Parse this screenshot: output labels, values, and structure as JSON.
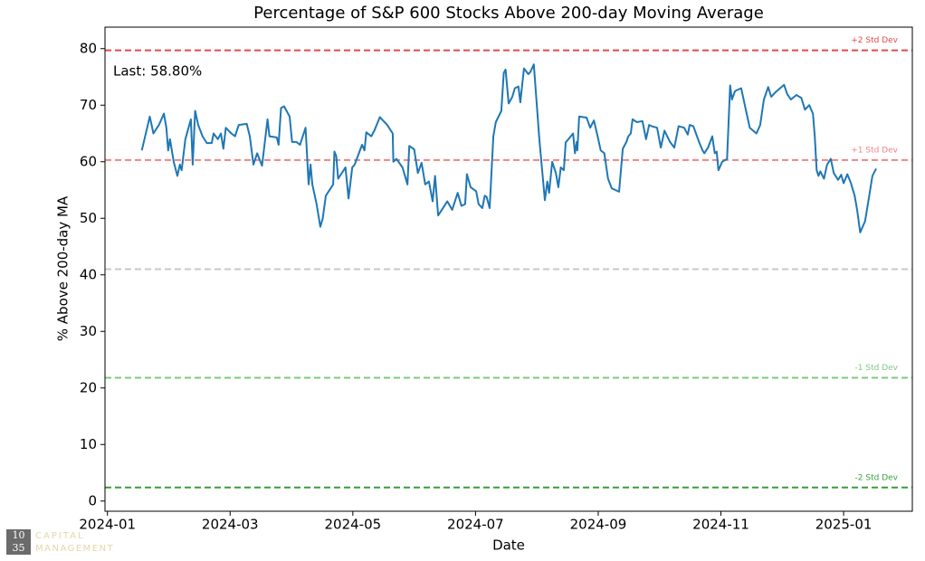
{
  "chart_data": {
    "type": "line",
    "title": "Percentage of S&P 600 Stocks Above 200-day Moving Average",
    "xlabel": "Date",
    "ylabel": "% Above 200-day MA",
    "annotation": "Last: 58.80%",
    "watermark": {
      "top": "10",
      "bottom": "35",
      "line1": "CAPITAL",
      "line2": "MANAGEMENT"
    },
    "xlim": [
      -0.04,
      13.12
    ],
    "xticks": [
      {
        "value": 0,
        "label": "2024-01"
      },
      {
        "value": 2,
        "label": "2024-03"
      },
      {
        "value": 4,
        "label": "2024-05"
      },
      {
        "value": 6,
        "label": "2024-07"
      },
      {
        "value": 8,
        "label": "2024-09"
      },
      {
        "value": 10,
        "label": "2024-11"
      },
      {
        "value": 12,
        "label": "2025-01"
      }
    ],
    "ylim": [
      -1.8,
      83.8
    ],
    "yticks": [
      0,
      10,
      20,
      30,
      40,
      50,
      60,
      70,
      80
    ],
    "reference_lines": [
      {
        "value": 79.7,
        "label": "+2 Std Dev",
        "color": "#e04a4a"
      },
      {
        "value": 60.3,
        "label": "+1 Std Dev",
        "color": "#ee8585"
      },
      {
        "value": 41.0,
        "color": "#c8c8c8"
      },
      {
        "value": 21.8,
        "label": "-1 Std Dev",
        "color": "#7cc97c"
      },
      {
        "value": 2.4,
        "label": "-2 Std Dev",
        "color": "#3a9e3a"
      }
    ],
    "series": [
      {
        "color": "#1f77b4",
        "x": [
          0.56,
          0.69,
          0.75,
          0.84,
          0.92,
          0.96,
          0.99,
          1.02,
          1.08,
          1.14,
          1.18,
          1.21,
          1.27,
          1.36,
          1.39,
          1.43,
          1.48,
          1.55,
          1.62,
          1.7,
          1.73,
          1.8,
          1.85,
          1.89,
          1.93,
          2.02,
          2.08,
          2.14,
          2.27,
          2.32,
          2.38,
          2.44,
          2.52,
          2.61,
          2.64,
          2.76,
          2.79,
          2.83,
          2.88,
          2.97,
          3.01,
          3.08,
          3.14,
          3.23,
          3.28,
          3.31,
          3.34,
          3.41,
          3.47,
          3.51,
          3.56,
          3.68,
          3.7,
          3.73,
          3.76,
          3.82,
          3.88,
          3.93,
          3.99,
          4.03,
          4.15,
          4.19,
          4.22,
          4.3,
          4.35,
          4.44,
          4.56,
          4.65,
          4.66,
          4.71,
          4.81,
          4.89,
          4.92,
          5.0,
          5.06,
          5.12,
          5.18,
          5.24,
          5.3,
          5.34,
          5.39,
          5.48,
          5.54,
          5.62,
          5.71,
          5.77,
          5.83,
          5.86,
          5.92,
          6.01,
          6.05,
          6.11,
          6.15,
          6.18,
          6.23,
          6.29,
          6.33,
          6.42,
          6.46,
          6.49,
          6.54,
          6.6,
          6.64,
          6.7,
          6.73,
          6.79,
          6.86,
          6.89,
          6.95,
          7.04,
          7.13,
          7.17,
          7.2,
          7.25,
          7.31,
          7.35,
          7.39,
          7.44,
          7.47,
          7.59,
          7.62,
          7.65,
          7.66,
          7.69,
          7.81,
          7.87,
          7.93,
          7.99,
          8.04,
          8.1,
          8.16,
          8.22,
          8.28,
          8.34,
          8.4,
          8.46,
          8.49,
          8.53,
          8.56,
          8.63,
          8.72,
          8.78,
          8.83,
          8.87,
          8.96,
          9.02,
          9.08,
          9.17,
          9.24,
          9.31,
          9.4,
          9.46,
          9.49,
          9.55,
          9.64,
          9.7,
          9.73,
          9.79,
          9.86,
          9.9,
          9.93,
          9.96,
          10.02,
          10.1,
          10.15,
          10.18,
          10.23,
          10.33,
          10.41,
          10.47,
          10.58,
          10.64,
          10.7,
          10.77,
          10.82,
          10.89,
          11.03,
          11.08,
          11.14,
          11.23,
          11.31,
          11.37,
          11.44,
          11.5,
          11.53,
          11.56,
          11.59,
          11.62,
          11.68,
          11.73,
          11.79,
          11.84,
          11.91,
          11.96,
          12.0,
          12.06,
          12.12,
          12.18,
          12.22,
          12.27,
          12.35,
          12.41,
          12.47,
          12.53
        ],
        "values": [
          62,
          68,
          65,
          66.5,
          68.5,
          66,
          62,
          64,
          60,
          57.5,
          59.5,
          58.5,
          64,
          67.5,
          59.5,
          69,
          66.5,
          64.5,
          63.3,
          63.3,
          65,
          64,
          65,
          62.3,
          66,
          65,
          64.5,
          66.5,
          66.7,
          64.5,
          59.5,
          61.5,
          59.3,
          67.5,
          64.5,
          64.3,
          63,
          69.5,
          69.8,
          68,
          63.5,
          63.5,
          63,
          66,
          56,
          59.5,
          56,
          52.5,
          48.5,
          50,
          54,
          56,
          61.8,
          61,
          57,
          58,
          59,
          53.5,
          59,
          59.5,
          63,
          62,
          65.2,
          64.5,
          65.5,
          67.9,
          66.5,
          65,
          60,
          60.5,
          59,
          56,
          62.8,
          62.2,
          58,
          59.8,
          56,
          56.5,
          53,
          57.5,
          50.5,
          52,
          53,
          51.5,
          54.5,
          52.2,
          52.5,
          57.8,
          55.5,
          54.8,
          52.5,
          51.8,
          54,
          53.8,
          51.8,
          64.5,
          67,
          69,
          75.7,
          76.3,
          70.3,
          71.5,
          73,
          73.3,
          70.5,
          76.5,
          75.5,
          75.8,
          77.2,
          64,
          53.2,
          56.5,
          54.5,
          60,
          58,
          55.5,
          59,
          58.5,
          63.4,
          65,
          61.5,
          63.5,
          62,
          68,
          67.8,
          66,
          67.3,
          64.5,
          62,
          61.5,
          57,
          55.3,
          55,
          54.7,
          62.3,
          63.5,
          64.5,
          65,
          67.5,
          67,
          67.2,
          64,
          66.5,
          66.3,
          66,
          62.5,
          65.5,
          63.5,
          62.5,
          66.3,
          66,
          64.8,
          66.5,
          66.3,
          63.6,
          62,
          61.5,
          62.5,
          64.5,
          61.5,
          61.8,
          58.5,
          60,
          60.5,
          73.5,
          71,
          72.5,
          73,
          69,
          66,
          65,
          66.5,
          71,
          73.2,
          71.5,
          72.3,
          73.6,
          72,
          71,
          71.8,
          71.3,
          69.2,
          70,
          68.5,
          64.5,
          58.5,
          57.5,
          58.3,
          57,
          59.5,
          60.5,
          58,
          56.8,
          57.7,
          56.2,
          57.8,
          56.2,
          54,
          51.5,
          47.5,
          49.5,
          53.5,
          57.5,
          58.8
        ]
      }
    ]
  }
}
